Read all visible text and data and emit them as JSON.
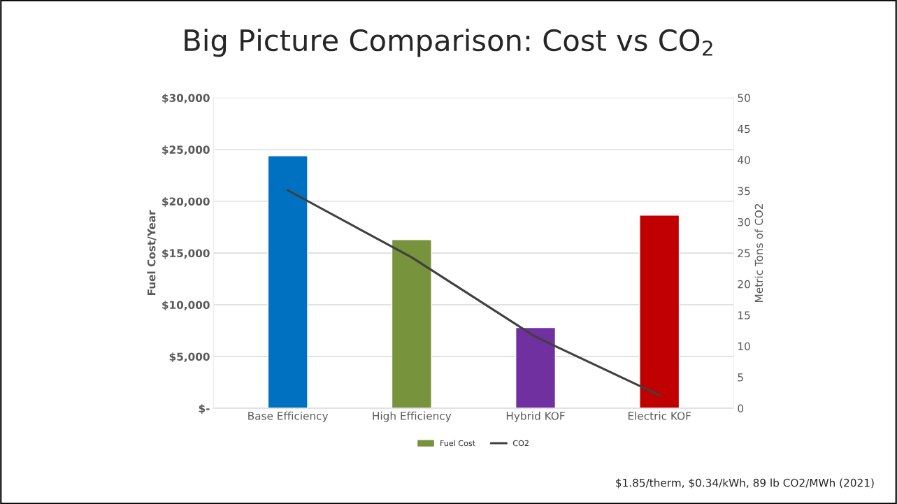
{
  "chart_data": {
    "type": "bar",
    "title": "Big Picture Comparison: Cost vs CO$_{2}$",
    "categories": [
      "Base Efficiency",
      "High Efficiency",
      "Hybrid KOF",
      "Electric KOF"
    ],
    "series": [
      {
        "name": "Fuel Cost",
        "color": "#77933c",
        "colors": [
          "#0070c0",
          "#77933c",
          "#7030a0",
          "#c00000"
        ],
        "values": [
          24400,
          16300,
          7800,
          18650
        ]
      },
      {
        "name": "CO2",
        "type": "line",
        "axis": "y2",
        "color": "#404040",
        "values": [
          35.1,
          24.3,
          11.5,
          2.1
        ]
      }
    ],
    "ylabel": "Fuel Cost/Year",
    "y2label": "Metric Tons of CO2",
    "ylim": [
      0,
      30000
    ],
    "yticks": [
      {
        "value": 0,
        "label": "$-"
      },
      {
        "value": 5000,
        "label": "$5,000"
      },
      {
        "value": 10000,
        "label": "$10,000"
      },
      {
        "value": 15000,
        "label": "$15,000"
      },
      {
        "value": 20000,
        "label": "$20,000"
      },
      {
        "value": 25000,
        "label": "$25,000"
      },
      {
        "value": 30000,
        "label": "$30,000"
      }
    ],
    "y2lim": [
      0,
      50
    ],
    "y2ticks": [
      0,
      5,
      10,
      15,
      20,
      25,
      30,
      35,
      40,
      45,
      50
    ],
    "grid": "y",
    "legend": "bottom",
    "annotations": [
      "$1.85/therm, $0.34/kWh, 89 lb CO2/MWh (2021)"
    ]
  }
}
